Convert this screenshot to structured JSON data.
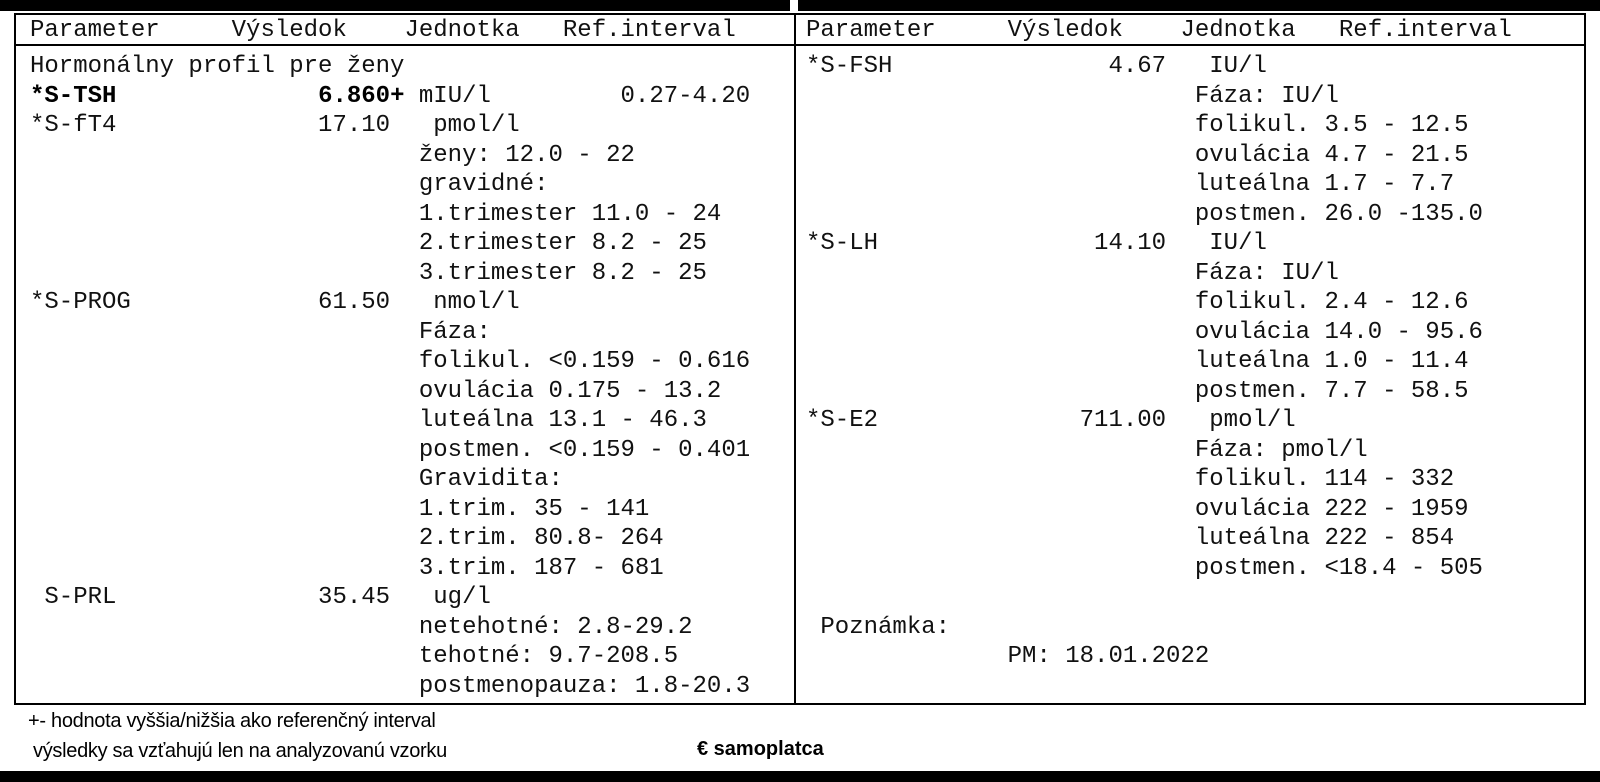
{
  "colors": {
    "ink": "#000000",
    "paper": "#ffffff"
  },
  "table": {
    "columns": [
      "Parameter",
      "Výsledok",
      "Jednotka",
      "Ref.interval"
    ],
    "header_line": "Parameter     Výsledok    Jednotka   Ref.interval",
    "section_title": "Hormonálny profil pre ženy",
    "left_lines": [
      "Hormonálny profil pre ženy",
      {
        "segments": [
          {
            "text": "*S-TSH",
            "bold": true
          },
          {
            "text": "              ",
            "bold": false
          },
          {
            "text": "6.860+",
            "bold": true
          },
          {
            "text": " mIU/l         0.27-4.20",
            "bold": false
          }
        ]
      },
      "*S-fT4              17.10   pmol/l",
      "                           ženy: 12.0 - 22",
      "                           gravidné:",
      "                           1.trimester 11.0 - 24",
      "                           2.trimester 8.2 - 25",
      "                           3.trimester 8.2 - 25",
      "*S-PROG             61.50   nmol/l",
      "                           Fáza:",
      "                           folikul. <0.159 - 0.616",
      "                           ovulácia 0.175 - 13.2",
      "                           luteálna 13.1 - 46.3",
      "                           postmen. <0.159 - 0.401",
      "                           Gravidita:",
      "                           1.trim. 35 - 141",
      "                           2.trim. 80.8- 264",
      "                           3.trim. 187 - 681",
      " S-PRL              35.45   ug/l",
      "                           netehotné: 2.8-29.2",
      "                           tehotné: 9.7-208.5",
      "                           postmenopauza: 1.8-20.3"
    ],
    "right_lines": [
      "*S-FSH               4.67   IU/l",
      "                           Fáza: IU/l",
      "                           folikul. 3.5 - 12.5",
      "                           ovulácia 4.7 - 21.5",
      "                           luteálna 1.7 - 7.7",
      "                           postmen. 26.0 -135.0",
      "*S-LH               14.10   IU/l",
      "                           Fáza: IU/l",
      "                           folikul. 2.4 - 12.6",
      "                           ovulácia 14.0 - 95.6",
      "                           luteálna 1.0 - 11.4",
      "                           postmen. 7.7 - 58.5",
      "*S-E2              711.00   pmol/l",
      "                           Fáza: pmol/l",
      "                           folikul. 114 - 332",
      "                           ovulácia 222 - 1959",
      "                           luteálna 222 - 854",
      "                           postmen. <18.4 - 505",
      "",
      " Poznámka:",
      "              PM: 18.01.2022"
    ]
  },
  "tests": [
    {
      "parameter": "*S-TSH",
      "result": "6.860",
      "flag": "+",
      "unit": "mIU/l",
      "ref_interval": "0.27-4.20"
    },
    {
      "parameter": "*S-fT4",
      "result": "17.10",
      "flag": "",
      "unit": "pmol/l",
      "ref_interval": ""
    },
    {
      "parameter": "*S-PROG",
      "result": "61.50",
      "flag": "",
      "unit": "nmol/l",
      "ref_interval": ""
    },
    {
      "parameter": "S-PRL",
      "result": "35.45",
      "flag": "",
      "unit": "ug/l",
      "ref_interval": ""
    },
    {
      "parameter": "*S-FSH",
      "result": "4.67",
      "flag": "",
      "unit": "IU/l",
      "ref_interval": ""
    },
    {
      "parameter": "*S-LH",
      "result": "14.10",
      "flag": "",
      "unit": "IU/l",
      "ref_interval": ""
    },
    {
      "parameter": "*S-E2",
      "result": "711.00",
      "flag": "",
      "unit": "pmol/l",
      "ref_interval": ""
    }
  ],
  "note": {
    "label": "Poznámka:",
    "pm_date": "PM: 18.01.2022"
  },
  "footer": {
    "note1": "+- hodnota vyššia/nižšia ako referenčný interval",
    "note2": "výsledky sa vzťahujú len na analyzovanú vzorku",
    "payer": "€ samoplatca"
  }
}
